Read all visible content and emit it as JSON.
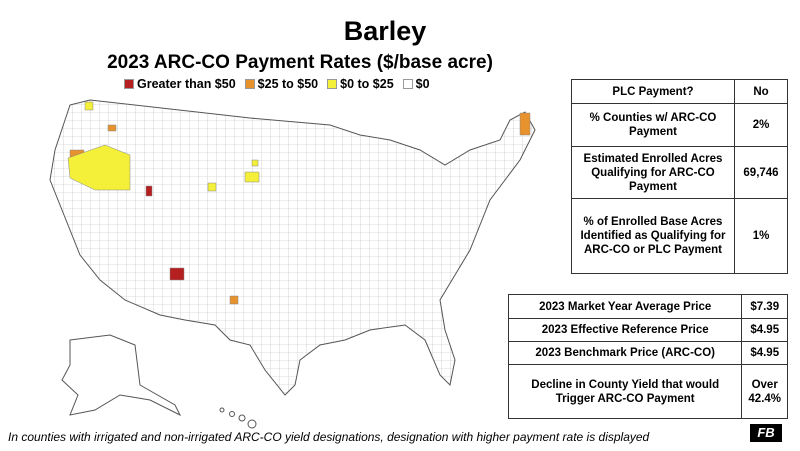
{
  "title": "Barley",
  "subtitle": "2023 ARC-CO Payment Rates ($/base acre)",
  "legend": [
    {
      "label": "Greater than $50",
      "color": "#b51f1f"
    },
    {
      "label": "$25 to $50",
      "color": "#e8922e"
    },
    {
      "label": "$0 to $25",
      "color": "#f4f03a"
    },
    {
      "label": "$0",
      "color": "#ffffff"
    }
  ],
  "table1": {
    "rows": [
      [
        "PLC Payment?",
        "No"
      ],
      [
        "% Counties w/ ARC-CO Payment",
        "2%"
      ],
      [
        "Estimated Enrolled Acres Qualifying for ARC-CO Payment",
        "69,746"
      ],
      [
        "% of Enrolled Base Acres Identified as Qualifying for ARC-CO or PLC Payment",
        "1%"
      ]
    ]
  },
  "table2": {
    "rows": [
      [
        "2023 Market Year Average Price",
        "$7.39"
      ],
      [
        "2023 Effective Reference Price",
        "$4.95"
      ],
      [
        "2023 Benchmark Price (ARC-CO)",
        "$4.95"
      ],
      [
        "Decline in County Yield that would Trigger ARC-CO Payment",
        "Over 42.4%"
      ]
    ]
  },
  "footnote": "In counties with irrigated and non-irrigated ARC-CO yield designations, designation with higher payment rate is displayed",
  "logo": "FB"
}
